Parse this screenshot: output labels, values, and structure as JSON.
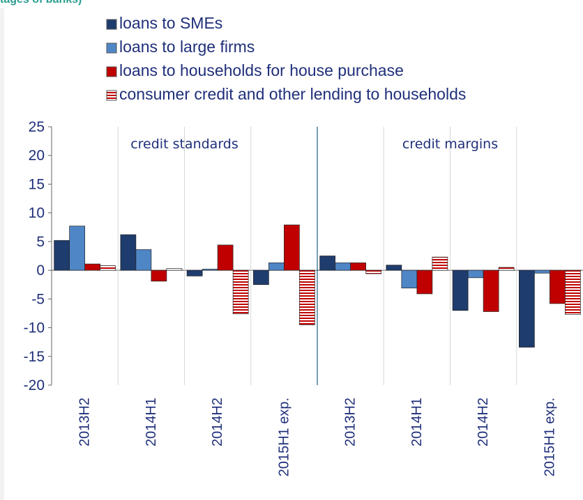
{
  "header_text": "tages of banks)",
  "chart_data": {
    "type": "bar",
    "ylim": [
      -20,
      25
    ],
    "yticks": [
      25,
      20,
      15,
      10,
      5,
      0,
      -5,
      -10,
      -15,
      -20
    ],
    "grid": "vertical separators only",
    "legend_position": "top",
    "panels": [
      {
        "label": "credit standards",
        "categories": [
          "2013H2",
          "2014H1",
          "2014H2",
          "2015H1 exp."
        ],
        "series": [
          {
            "name": "loans to SMEs",
            "color": "#1f3c6e",
            "values": [
              5.2,
              6.2,
              -1.0,
              -2.5
            ]
          },
          {
            "name": "loans to large firms",
            "color": "#4f86c6",
            "values": [
              7.7,
              3.6,
              0.2,
              1.3
            ]
          },
          {
            "name": "loans to households for house purchase",
            "color": "#c00000",
            "values": [
              1.1,
              -1.9,
              4.4,
              7.9
            ]
          },
          {
            "name": "consumer credit and other lending to households",
            "color": "#e8a0a0",
            "pattern": "horizontal-stripes",
            "values": [
              0.8,
              0.3,
              -7.6,
              -9.5
            ]
          }
        ]
      },
      {
        "label": "credit margins",
        "categories": [
          "2013H2",
          "2014H1",
          "2014H2",
          "2015H1 exp."
        ],
        "series": [
          {
            "name": "loans to SMEs",
            "color": "#1f3c6e",
            "values": [
              2.5,
              0.9,
              -7.0,
              -13.4
            ]
          },
          {
            "name": "loans to large firms",
            "color": "#4f86c6",
            "values": [
              1.3,
              -3.1,
              -1.3,
              -0.5
            ]
          },
          {
            "name": "loans to households for house purchase",
            "color": "#c00000",
            "values": [
              1.3,
              -4.1,
              -7.2,
              -5.8
            ]
          },
          {
            "name": "consumer credit and other lending to households",
            "color": "#e8a0a0",
            "pattern": "horizontal-stripes",
            "values": [
              -0.6,
              2.3,
              0.5,
              -7.7
            ]
          }
        ]
      }
    ]
  }
}
